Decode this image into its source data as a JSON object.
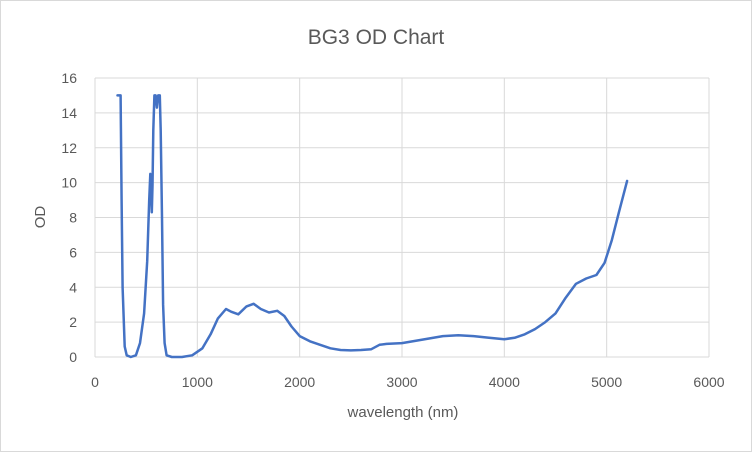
{
  "chart_data": {
    "type": "line",
    "title": "BG3 OD Chart",
    "xlabel": "wavelength (nm)",
    "ylabel": "OD",
    "xlim": [
      0,
      6000
    ],
    "ylim": [
      0,
      16
    ],
    "xticks": [
      0,
      1000,
      2000,
      3000,
      4000,
      5000,
      6000
    ],
    "yticks": [
      0,
      2,
      4,
      6,
      8,
      10,
      12,
      14,
      16
    ],
    "grid": true,
    "legend": "none",
    "series_color": "#4472c4",
    "series": [
      {
        "points": [
          [
            220,
            15.0
          ],
          [
            250,
            15.0
          ],
          [
            260,
            9.0
          ],
          [
            270,
            4.0
          ],
          [
            290,
            0.6
          ],
          [
            310,
            0.1
          ],
          [
            350,
            0.0
          ],
          [
            400,
            0.1
          ],
          [
            440,
            0.8
          ],
          [
            480,
            2.5
          ],
          [
            510,
            5.5
          ],
          [
            530,
            9.0
          ],
          [
            540,
            10.5
          ],
          [
            548,
            9.5
          ],
          [
            555,
            8.3
          ],
          [
            562,
            9.8
          ],
          [
            570,
            13.0
          ],
          [
            580,
            15.0
          ],
          [
            592,
            15.0
          ],
          [
            605,
            14.3
          ],
          [
            618,
            15.0
          ],
          [
            633,
            15.0
          ],
          [
            642,
            13.0
          ],
          [
            655,
            8.0
          ],
          [
            665,
            3.0
          ],
          [
            680,
            0.8
          ],
          [
            700,
            0.1
          ],
          [
            750,
            0.0
          ],
          [
            850,
            0.0
          ],
          [
            950,
            0.1
          ],
          [
            1050,
            0.5
          ],
          [
            1130,
            1.3
          ],
          [
            1200,
            2.2
          ],
          [
            1280,
            2.75
          ],
          [
            1330,
            2.6
          ],
          [
            1400,
            2.45
          ],
          [
            1480,
            2.9
          ],
          [
            1550,
            3.05
          ],
          [
            1620,
            2.75
          ],
          [
            1700,
            2.55
          ],
          [
            1780,
            2.65
          ],
          [
            1850,
            2.35
          ],
          [
            1920,
            1.75
          ],
          [
            2000,
            1.2
          ],
          [
            2100,
            0.9
          ],
          [
            2200,
            0.7
          ],
          [
            2300,
            0.5
          ],
          [
            2400,
            0.4
          ],
          [
            2500,
            0.38
          ],
          [
            2600,
            0.4
          ],
          [
            2700,
            0.45
          ],
          [
            2780,
            0.7
          ],
          [
            2850,
            0.75
          ],
          [
            3000,
            0.8
          ],
          [
            3200,
            1.0
          ],
          [
            3400,
            1.2
          ],
          [
            3550,
            1.25
          ],
          [
            3700,
            1.2
          ],
          [
            3850,
            1.1
          ],
          [
            4000,
            1.02
          ],
          [
            4100,
            1.1
          ],
          [
            4200,
            1.3
          ],
          [
            4300,
            1.6
          ],
          [
            4400,
            2.0
          ],
          [
            4500,
            2.5
          ],
          [
            4600,
            3.4
          ],
          [
            4700,
            4.2
          ],
          [
            4800,
            4.5
          ],
          [
            4900,
            4.7
          ],
          [
            4980,
            5.4
          ],
          [
            5050,
            6.7
          ],
          [
            5120,
            8.3
          ],
          [
            5200,
            10.1
          ]
        ]
      }
    ]
  }
}
